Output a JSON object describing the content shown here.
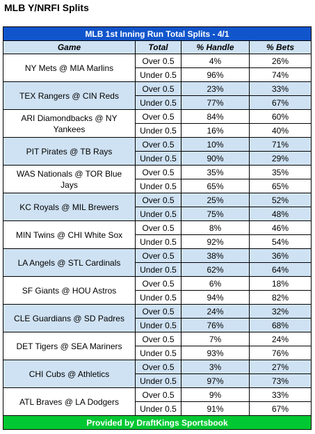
{
  "page_title": "MLB Y/NRFI Splits",
  "table": {
    "banner": "MLB 1st Inning Run Total Splits - 4/1",
    "columns": [
      "Game",
      "Total",
      "% Handle",
      "% Bets"
    ],
    "games": [
      {
        "game": "NY Mets @ MIA Marlins",
        "rows": [
          [
            "Over 0.5",
            "4%",
            "26%"
          ],
          [
            "Under 0.5",
            "96%",
            "74%"
          ]
        ]
      },
      {
        "game": "TEX Rangers @ CIN Reds",
        "rows": [
          [
            "Over 0.5",
            "23%",
            "33%"
          ],
          [
            "Under 0.5",
            "77%",
            "67%"
          ]
        ]
      },
      {
        "game": "ARI Diamondbacks @ NY Yankees",
        "rows": [
          [
            "Over 0.5",
            "84%",
            "60%"
          ],
          [
            "Under 0.5",
            "16%",
            "40%"
          ]
        ]
      },
      {
        "game": "PIT Pirates @ TB Rays",
        "rows": [
          [
            "Over 0.5",
            "10%",
            "71%"
          ],
          [
            "Under 0.5",
            "90%",
            "29%"
          ]
        ]
      },
      {
        "game": "WAS Nationals @ TOR Blue Jays",
        "rows": [
          [
            "Over 0.5",
            "35%",
            "35%"
          ],
          [
            "Under 0.5",
            "65%",
            "65%"
          ]
        ]
      },
      {
        "game": "KC Royals @ MIL Brewers",
        "rows": [
          [
            "Over 0.5",
            "25%",
            "52%"
          ],
          [
            "Under 0.5",
            "75%",
            "48%"
          ]
        ]
      },
      {
        "game": "MIN Twins @ CHI White Sox",
        "rows": [
          [
            "Over 0.5",
            "8%",
            "46%"
          ],
          [
            "Under 0.5",
            "92%",
            "54%"
          ]
        ]
      },
      {
        "game": "LA Angels @ STL Cardinals",
        "rows": [
          [
            "Over 0.5",
            "38%",
            "36%"
          ],
          [
            "Under 0.5",
            "62%",
            "64%"
          ]
        ]
      },
      {
        "game": "SF Giants @ HOU Astros",
        "rows": [
          [
            "Over 0.5",
            "6%",
            "18%"
          ],
          [
            "Under 0.5",
            "94%",
            "82%"
          ]
        ]
      },
      {
        "game": "CLE Guardians @ SD Padres",
        "rows": [
          [
            "Over 0.5",
            "24%",
            "32%"
          ],
          [
            "Under 0.5",
            "76%",
            "68%"
          ]
        ]
      },
      {
        "game": "DET Tigers @ SEA Mariners",
        "rows": [
          [
            "Over 0.5",
            "7%",
            "24%"
          ],
          [
            "Under 0.5",
            "93%",
            "76%"
          ]
        ]
      },
      {
        "game": "CHI Cubs @ Athletics",
        "rows": [
          [
            "Over 0.5",
            "3%",
            "27%"
          ],
          [
            "Under 0.5",
            "97%",
            "73%"
          ]
        ]
      },
      {
        "game": "ATL Braves @ LA Dodgers",
        "rows": [
          [
            "Over 0.5",
            "9%",
            "33%"
          ],
          [
            "Under 0.5",
            "91%",
            "67%"
          ]
        ]
      }
    ],
    "footer": "Provided by DraftKings Sportsbook"
  },
  "colors": {
    "banner": "#1155cc",
    "header_bg": "#cfe2f3",
    "shade": "#cfe2f3",
    "footer": "#00c832"
  }
}
